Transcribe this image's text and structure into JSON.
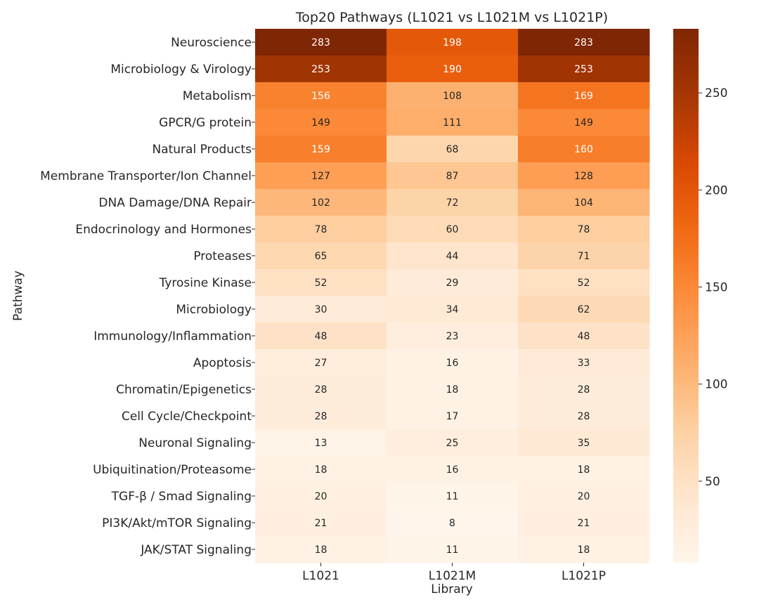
{
  "chart_data": {
    "type": "heatmap",
    "title": "Top20 Pathways (L1021 vs L1021M vs L1021P)",
    "xlabel": "Library",
    "ylabel": "Pathway",
    "x_categories": [
      "L1021",
      "L1021M",
      "L1021P"
    ],
    "y_categories": [
      "Neuroscience",
      "Microbiology & Virology",
      "Metabolism",
      "GPCR/G protein",
      "Natural Products",
      "Membrane Transporter/Ion Channel",
      "DNA Damage/DNA Repair",
      "Endocrinology and Hormones",
      "Proteases",
      "Tyrosine Kinase",
      "Microbiology",
      "Immunology/Inflammation",
      "Apoptosis",
      "Chromatin/Epigenetics",
      "Cell Cycle/Checkpoint",
      "Neuronal Signaling",
      "Ubiquitination/Proteasome",
      "TGF-β / Smad Signaling",
      "PI3K/Akt/mTOR Signaling",
      "JAK/STAT Signaling"
    ],
    "values": [
      [
        283,
        198,
        283
      ],
      [
        253,
        190,
        253
      ],
      [
        156,
        108,
        169
      ],
      [
        149,
        111,
        149
      ],
      [
        159,
        68,
        160
      ],
      [
        127,
        87,
        128
      ],
      [
        102,
        72,
        104
      ],
      [
        78,
        60,
        78
      ],
      [
        65,
        44,
        71
      ],
      [
        52,
        29,
        52
      ],
      [
        30,
        34,
        62
      ],
      [
        48,
        23,
        48
      ],
      [
        27,
        16,
        33
      ],
      [
        28,
        18,
        28
      ],
      [
        28,
        17,
        28
      ],
      [
        13,
        25,
        35
      ],
      [
        18,
        16,
        18
      ],
      [
        20,
        11,
        20
      ],
      [
        21,
        8,
        21
      ],
      [
        18,
        11,
        18
      ]
    ],
    "colormap": "Oranges",
    "vmin": 8,
    "vmax": 283,
    "colorbar_ticks": [
      50,
      100,
      150,
      200,
      250
    ]
  }
}
